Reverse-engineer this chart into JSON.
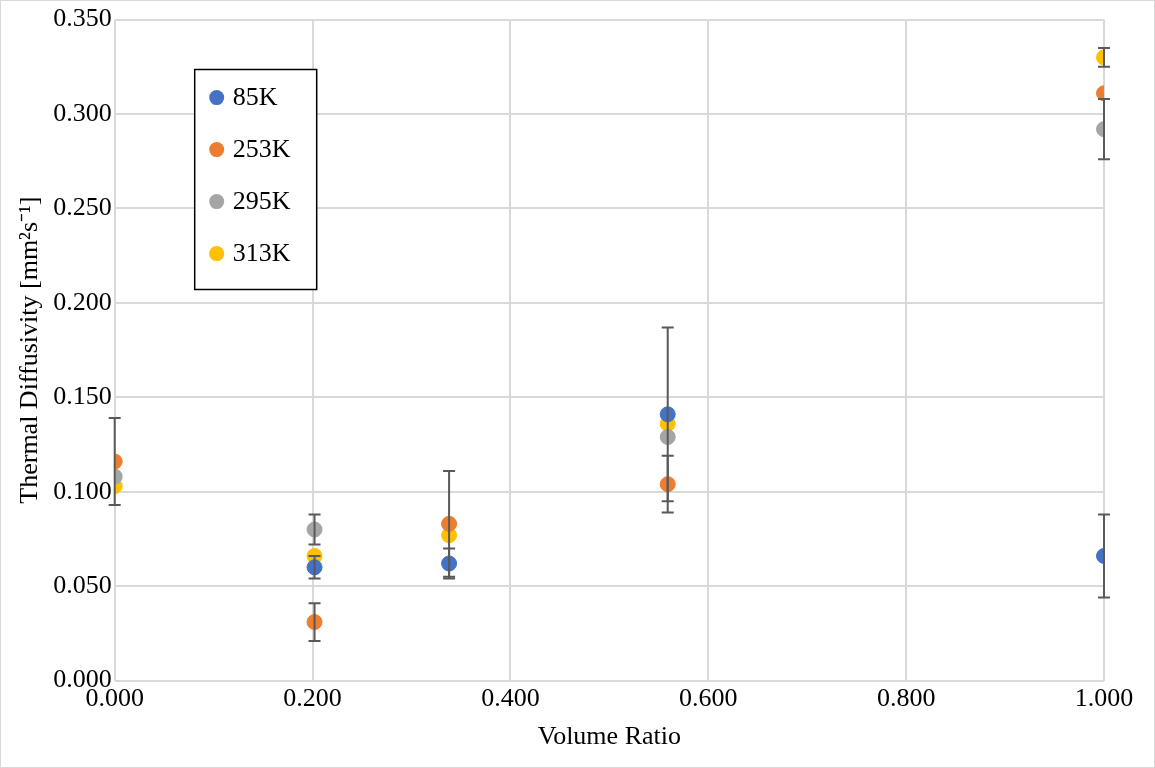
{
  "chart_data": {
    "type": "scatter",
    "xlabel": "Volume Ratio",
    "ylabel": "Thermal Diffusivity [mm²s⁻¹]",
    "xlim": [
      0,
      1
    ],
    "xticks": [
      {
        "value": 0,
        "label": "0.000"
      },
      {
        "value": 0.2,
        "label": "0.200"
      },
      {
        "value": 0.4,
        "label": "0.400"
      },
      {
        "value": 0.6,
        "label": "0.600"
      },
      {
        "value": 0.8,
        "label": "0.800"
      },
      {
        "value": 1,
        "label": "1.000"
      }
    ],
    "ylim": [
      0,
      0.35
    ],
    "yticks": [
      {
        "value": 0,
        "label": "0.000"
      },
      {
        "value": 0.05,
        "label": "0.050"
      },
      {
        "value": 0.1,
        "label": "0.100"
      },
      {
        "value": 0.15,
        "label": "0.150"
      },
      {
        "value": 0.2,
        "label": "0.200"
      },
      {
        "value": 0.25,
        "label": "0.250"
      },
      {
        "value": 0.3,
        "label": "0.300"
      },
      {
        "value": 0.35,
        "label": "0.350"
      }
    ],
    "grid": true,
    "legend": "top left",
    "marker": "circle",
    "series": [
      {
        "name": "85K",
        "color": "#4472c4",
        "x": [
          0.202,
          0.338,
          0.559,
          1.0
        ],
        "values": [
          0.06,
          0.062,
          0.141,
          0.066
        ],
        "errors": [
          0.006,
          0.008,
          0.046,
          0.022
        ]
      },
      {
        "name": "253K",
        "color": "#ed7d31",
        "x": [
          0,
          0.202,
          0.338,
          0.559,
          1.0
        ],
        "values": [
          0.116,
          0.031,
          0.083,
          0.104,
          0.311
        ],
        "errors": [
          0.023,
          0.01,
          0.028,
          0.015,
          null
        ]
      },
      {
        "name": "295K",
        "color": "#a5a5a5",
        "x": [
          0,
          0.202,
          0.559,
          1.0
        ],
        "values": [
          0.108,
          0.08,
          0.129,
          0.292
        ],
        "errors": [
          null,
          0.008,
          null,
          0.016
        ]
      },
      {
        "name": "313K",
        "color": "#ffc000",
        "x": [
          0,
          0.202,
          0.338,
          0.559,
          1.0
        ],
        "values": [
          0.103,
          0.066,
          0.077,
          0.136,
          0.33
        ],
        "errors": [
          null,
          null,
          null,
          null,
          0.005
        ]
      }
    ]
  }
}
